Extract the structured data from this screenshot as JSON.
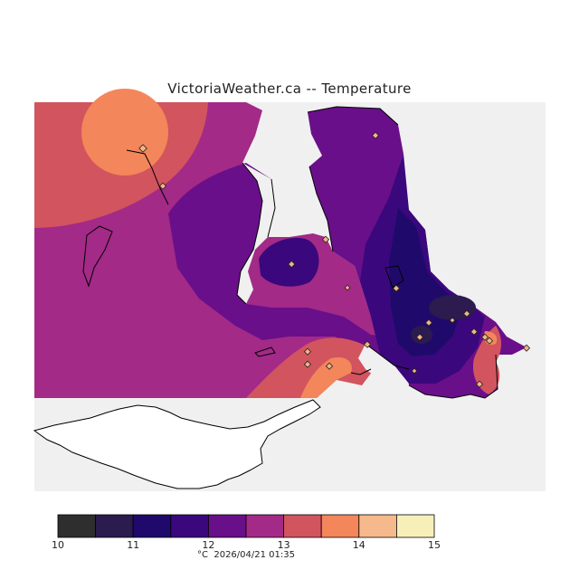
{
  "title": "VictoriaWeather.ca -- Temperature",
  "legend": {
    "unit": "°C",
    "timestamp": "2026/04/21 01:35",
    "bins": [
      {
        "range": [
          10.0,
          10.5
        ],
        "color": "#2e2e2e"
      },
      {
        "range": [
          10.5,
          11.0
        ],
        "color": "#2b1b4e"
      },
      {
        "range": [
          11.0,
          11.5
        ],
        "color": "#1f0a6b"
      },
      {
        "range": [
          11.5,
          12.0
        ],
        "color": "#3a087c"
      },
      {
        "range": [
          12.0,
          12.5
        ],
        "color": "#6a0f8a"
      },
      {
        "range": [
          12.5,
          13.0
        ],
        "color": "#a32a87"
      },
      {
        "range": [
          13.0,
          13.5
        ],
        "color": "#d2545f"
      },
      {
        "range": [
          13.5,
          14.0
        ],
        "color": "#f3865a"
      },
      {
        "range": [
          14.0,
          14.5
        ],
        "color": "#f6b98b"
      },
      {
        "range": [
          14.5,
          15.0
        ],
        "color": "#f7efba"
      }
    ],
    "tick_labels": [
      "10",
      "11",
      "12",
      "13",
      "14",
      "15"
    ]
  },
  "colors": {
    "water": "#f0f0f0",
    "coastline": "#000000",
    "station_marker": "#f3b487"
  },
  "stations_count": 21
}
